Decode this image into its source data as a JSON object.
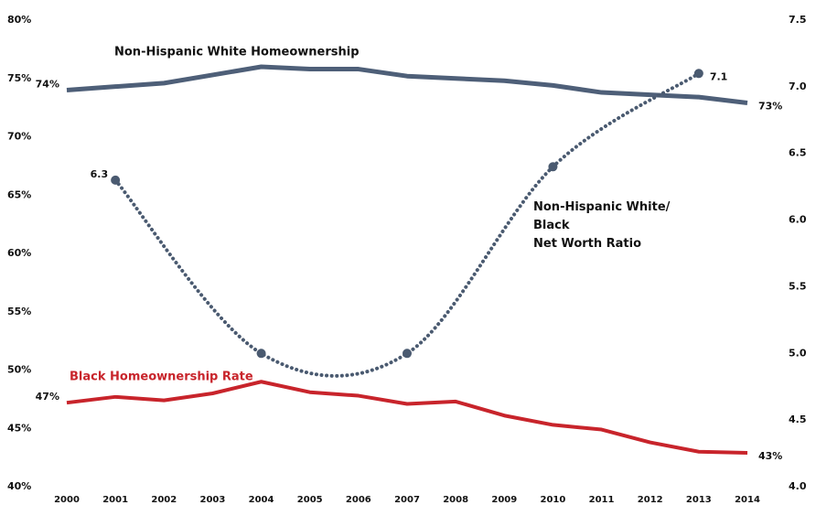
{
  "chart_data": {
    "type": "line",
    "xlim": [
      2000,
      2014
    ],
    "xticks": [
      2000,
      2001,
      2002,
      2003,
      2004,
      2005,
      2006,
      2007,
      2008,
      2009,
      2010,
      2011,
      2012,
      2013,
      2014
    ],
    "ylim": [
      40,
      80
    ],
    "yticks": [
      {
        "value": 40,
        "label": "40%"
      },
      {
        "value": 45,
        "label": "45%"
      },
      {
        "value": 50,
        "label": "50%"
      },
      {
        "value": 55,
        "label": "55%"
      },
      {
        "value": 60,
        "label": "60%"
      },
      {
        "value": 65,
        "label": "65%"
      },
      {
        "value": 70,
        "label": "70%"
      },
      {
        "value": 75,
        "label": "75%"
      },
      {
        "value": 80,
        "label": "80%"
      }
    ],
    "y2lim": [
      4.0,
      7.5
    ],
    "y2ticks": [
      {
        "value": 4.0,
        "label": "4.0"
      },
      4.5,
      {
        "value": 5.0,
        "label": "5.0"
      },
      5.5,
      {
        "value": 6.0,
        "label": "6.0"
      },
      6.5,
      {
        "value": 7.0,
        "label": "7.0"
      },
      7.5
    ],
    "grid": false,
    "series": [
      {
        "name": "Non-Hispanic White Homeownership",
        "color": "#4e5f78",
        "style": "solid",
        "x": [
          2000,
          2001,
          2002,
          2003,
          2004,
          2005,
          2006,
          2007,
          2008,
          2009,
          2010,
          2011,
          2012,
          2013,
          2014
        ],
        "values": [
          74.0,
          74.3,
          74.6,
          75.3,
          76.0,
          75.8,
          75.8,
          75.2,
          75.0,
          74.8,
          74.4,
          73.8,
          73.6,
          73.4,
          72.9
        ],
        "value_labels": [
          "74%",
          null,
          null,
          null,
          null,
          null,
          null,
          null,
          null,
          null,
          null,
          null,
          null,
          null,
          "73%"
        ]
      },
      {
        "name": "Black Homeownership Rate",
        "color": "#c8242b",
        "style": "solid",
        "x": [
          2000,
          2001,
          2002,
          2003,
          2004,
          2005,
          2006,
          2007,
          2008,
          2009,
          2010,
          2011,
          2012,
          2013,
          2014
        ],
        "values": [
          47.2,
          47.7,
          47.4,
          48.0,
          49.0,
          48.1,
          47.8,
          47.1,
          47.3,
          46.1,
          45.3,
          44.9,
          43.8,
          43.0,
          42.9
        ],
        "value_labels": [
          "47%",
          null,
          null,
          null,
          null,
          null,
          null,
          null,
          null,
          null,
          null,
          null,
          null,
          null,
          "43%"
        ]
      },
      {
        "name": [
          "Non-Hispanic White/",
          "Black",
          "Net Worth Ratio"
        ],
        "color": "#4a5a70",
        "style": "dotted",
        "axis": "y2",
        "x": [
          2001,
          2004,
          2007,
          2010,
          2013
        ],
        "values": [
          6.3,
          5.0,
          5.0,
          6.4,
          7.1
        ],
        "value_labels": [
          "6.3",
          null,
          null,
          null,
          "7.1"
        ]
      }
    ]
  }
}
